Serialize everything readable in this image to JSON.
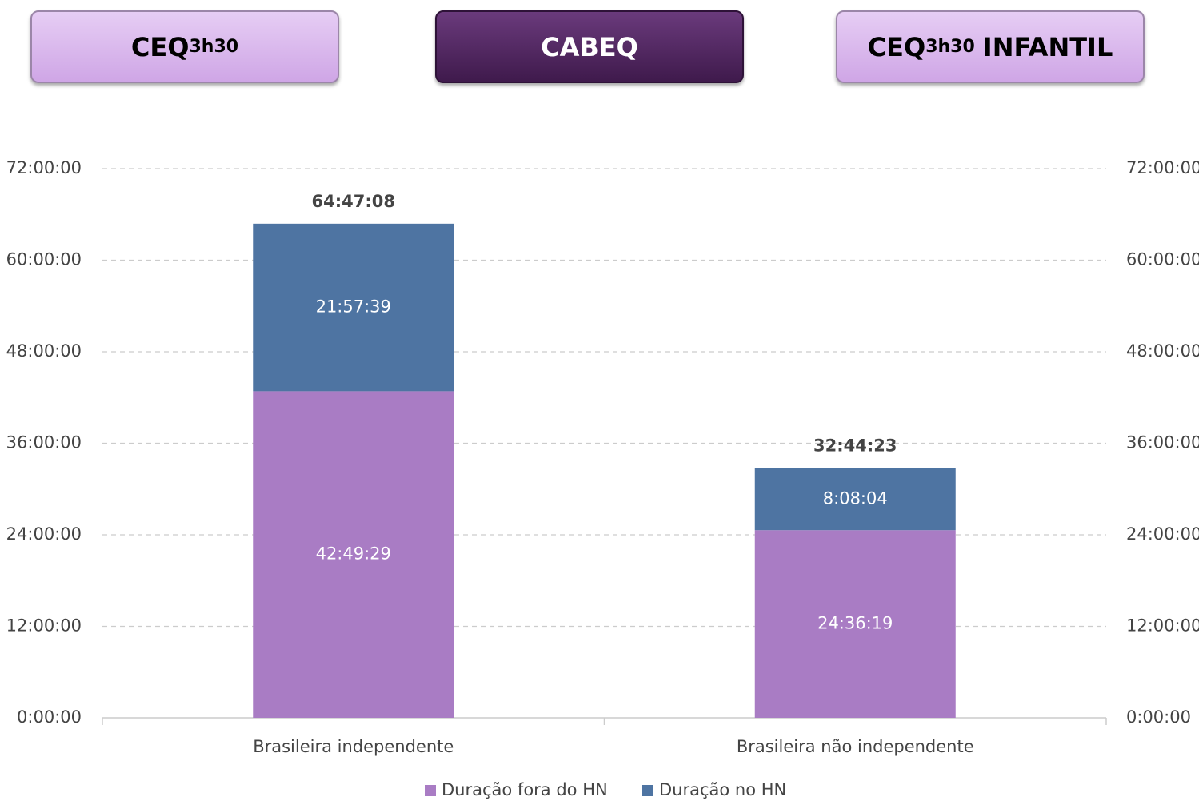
{
  "buttons": [
    {
      "label": "CEQ",
      "sup": "3h30"
    },
    {
      "label": "CABEQ"
    },
    {
      "label": "CEQ",
      "sup": "3h30",
      "suffix": "INFANTIL"
    }
  ],
  "chart_data": {
    "type": "stacked_bar",
    "categories": [
      "Brasileira independente",
      "Brasileira não independente"
    ],
    "series": [
      {
        "name": "Duração fora do HN",
        "color": "#a97cc4",
        "values": [
          42.824722,
          24.605278
        ],
        "value_labels": [
          "42:49:29",
          "24:36:19"
        ]
      },
      {
        "name": "Duração no HN",
        "color": "#4e74a2",
        "values": [
          21.960833,
          8.134444
        ],
        "value_labels": [
          "21:57:39",
          "8:08:04"
        ]
      }
    ],
    "totals": [
      64.785556,
      32.739722
    ],
    "total_labels": [
      "64:47:08",
      "32:44:23"
    ],
    "ylim": [
      0,
      72
    ],
    "yticks": [
      {
        "value": 0,
        "label": "0:00:00"
      },
      {
        "value": 12,
        "label": "12:00:00"
      },
      {
        "value": 24,
        "label": "24:00:00"
      },
      {
        "value": 36,
        "label": "36:00:00"
      },
      {
        "value": 48,
        "label": "48:00:00"
      },
      {
        "value": 60,
        "label": "60:00:00"
      },
      {
        "value": 72,
        "label": "72:00:00"
      }
    ],
    "grid": true,
    "legend": "bottom"
  }
}
